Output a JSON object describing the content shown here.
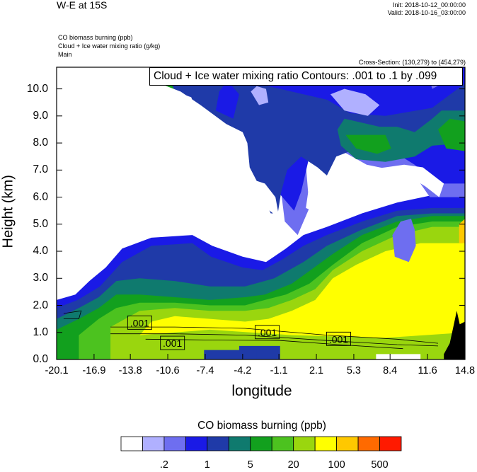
{
  "header": {
    "title": "W-E at 15S",
    "init": "Init: 2018-10-12_00:00:00",
    "valid": "Valid: 2018-10-16_03:00:00",
    "field_lines": [
      "CO biomass burning   (ppb)",
      "Cloud + Ice water mixing ratio   (g/kg)",
      "Main"
    ],
    "cross_section": "Cross-Section: (130,279) to (454,279)"
  },
  "chart_data": {
    "type": "heatmap",
    "title": "W-E at 15S",
    "xlabel": "longitude",
    "ylabel": "Height (km)",
    "x_ticks": [
      "-20.1",
      "-16.9",
      "-13.8",
      "-10.6",
      "-7.4",
      "-4.2",
      "-1.1",
      "2.1",
      "5.3",
      "8.4",
      "11.6",
      "14.8"
    ],
    "y_ticks": [
      "0.0",
      "1.0",
      "2.0",
      "3.0",
      "4.0",
      "5.0",
      "6.0",
      "7.0",
      "8.0",
      "9.0",
      "10.0"
    ],
    "xlim": [
      -20.1,
      14.8
    ],
    "ylim": [
      0.0,
      10.8
    ],
    "contour_title": "Cloud + Ice water mixing ratio Contours: .001 to .1 by .099",
    "contour_labels": [
      {
        "text": ".001",
        "x": -13.0,
        "y": 1.35
      },
      {
        "text": ".001",
        "x": -10.2,
        "y": 0.6
      },
      {
        "text": ".001",
        "x": -2.1,
        "y": 1.0
      },
      {
        "text": ".001",
        "x": 4.0,
        "y": 0.75
      }
    ],
    "colorbar": {
      "title": "CO biomass burning  (ppb)",
      "colors": [
        "#ffffff",
        "#b0b0ff",
        "#6e6ef0",
        "#1a1ae6",
        "#1f3aa8",
        "#0f7a6e",
        "#12a01e",
        "#4cc21f",
        "#9ad60e",
        "#ffff00",
        "#ffc800",
        "#ff6a00",
        "#ff1a00"
      ],
      "labels": [
        ".2",
        "1",
        "5",
        "20",
        "100",
        "500"
      ]
    }
  }
}
